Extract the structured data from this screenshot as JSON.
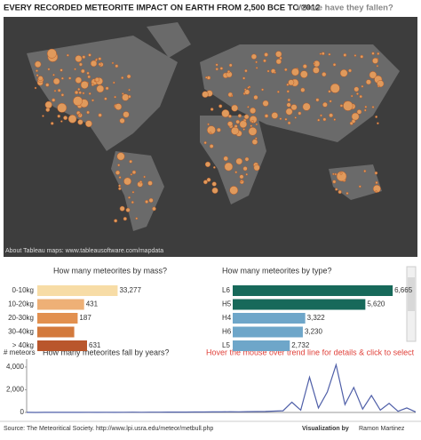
{
  "header": {
    "title": "EVERY RECORDED METEORITE IMPACT ON EARTH FROM 2,500 BCE TO 2012",
    "subtitle": "Where have they fallen?"
  },
  "map": {
    "credit": "About Tableau maps: www.tableausoftware.com/mapdata"
  },
  "chart_data": [
    {
      "type": "hbar",
      "title": "How many meteorites by mass?",
      "categories": [
        "0-10kg",
        "10-20kg",
        "20-30kg",
        "30-40kg",
        "> 40kg"
      ],
      "values": [
        33277,
        431,
        187,
        120,
        631
      ],
      "value_labels": [
        "33,277",
        "431",
        "187",
        null,
        "631"
      ],
      "colors": [
        "#f7dca6",
        "#eeb076",
        "#e2904f",
        "#d37a3d",
        "#b9562c"
      ],
      "xlim": [
        1,
        100000
      ],
      "log_scale": true
    },
    {
      "type": "hbar",
      "title": "How many meteorites by type?",
      "categories": [
        "L6",
        "H5",
        "H4",
        "H6",
        "L5"
      ],
      "values": [
        6665,
        5620,
        3322,
        3230,
        2732
      ],
      "value_labels": [
        "6,665",
        "5,620",
        "3,322",
        "3,230",
        "2,732"
      ],
      "colors": [
        "#17695a",
        "#17695a",
        "#6ea6c9",
        "#6ea6c9",
        "#6ea6c9"
      ],
      "xlim": [
        550,
        7000
      ],
      "log_scale": false
    },
    {
      "type": "line",
      "title": "How many meteorites fall by years?",
      "ylabel": "# meteors",
      "annotation": "Hover the mouse over trend line for details & click to select",
      "color": "#4f5fa8",
      "values": [
        5,
        3,
        8,
        4,
        6,
        10,
        7,
        12,
        9,
        15,
        10,
        14,
        20,
        18,
        25,
        22,
        30,
        28,
        35,
        40,
        38,
        45,
        50,
        60,
        55,
        70,
        80,
        90,
        120,
        150,
        900,
        200,
        3100,
        400,
        1800,
        4200,
        700,
        2200,
        300,
        1500,
        200,
        800,
        100,
        400,
        50
      ],
      "ylim": [
        0,
        4700
      ],
      "yticks": [
        0,
        {
          "value": 2000,
          "label": "2,000"
        },
        {
          "value": 4000,
          "label": "4,000"
        }
      ]
    }
  ],
  "footer": {
    "source": "Source: The Meteoritical Society. http://www.lpi.usra.edu/meteor/metbull.php",
    "credit_label": "Visualization by",
    "credit_name": "Ramon Martinez"
  }
}
